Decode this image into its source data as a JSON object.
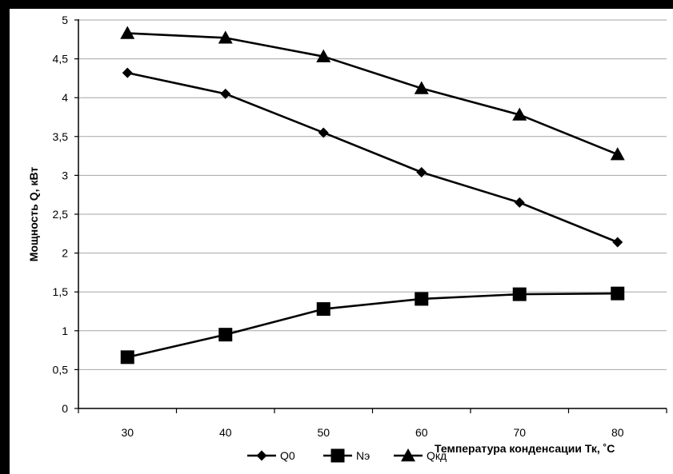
{
  "chart_data": {
    "type": "line",
    "title": "",
    "xlabel": "Температура конденсации Тк, ˚С",
    "ylabel": "Мощность Q, кВт",
    "categories": [
      "30",
      "40",
      "50",
      "60",
      "70",
      "80"
    ],
    "x": [
      30,
      40,
      50,
      60,
      70,
      80
    ],
    "ylim": [
      0,
      5
    ],
    "y_ticks": [
      {
        "value": 0,
        "label": "0"
      },
      {
        "value": 0.5,
        "label": "0,5"
      },
      {
        "value": 1,
        "label": "1"
      },
      {
        "value": 1.5,
        "label": "1,5"
      },
      {
        "value": 2,
        "label": "2"
      },
      {
        "value": 2.5,
        "label": "2,5"
      },
      {
        "value": 3,
        "label": "3"
      },
      {
        "value": 3.5,
        "label": "3,5"
      },
      {
        "value": 4,
        "label": "4"
      },
      {
        "value": 4.5,
        "label": "4,5"
      },
      {
        "value": 5,
        "label": "5"
      }
    ],
    "grid": "horizontal",
    "legend_position": "bottom",
    "series": [
      {
        "name": "Q0",
        "marker": "diamond",
        "values": [
          4.32,
          4.05,
          3.55,
          3.04,
          2.65,
          2.14
        ]
      },
      {
        "name": "Nэ",
        "marker": "square",
        "values": [
          0.66,
          0.95,
          1.28,
          1.41,
          1.47,
          1.48
        ]
      },
      {
        "name": "Qкд",
        "marker": "triangle",
        "values": [
          4.83,
          4.77,
          4.53,
          4.12,
          3.78,
          3.27
        ]
      }
    ],
    "colors": {
      "line": "#000000",
      "grid": "#a6a6a6",
      "background": "#ffffff"
    }
  }
}
